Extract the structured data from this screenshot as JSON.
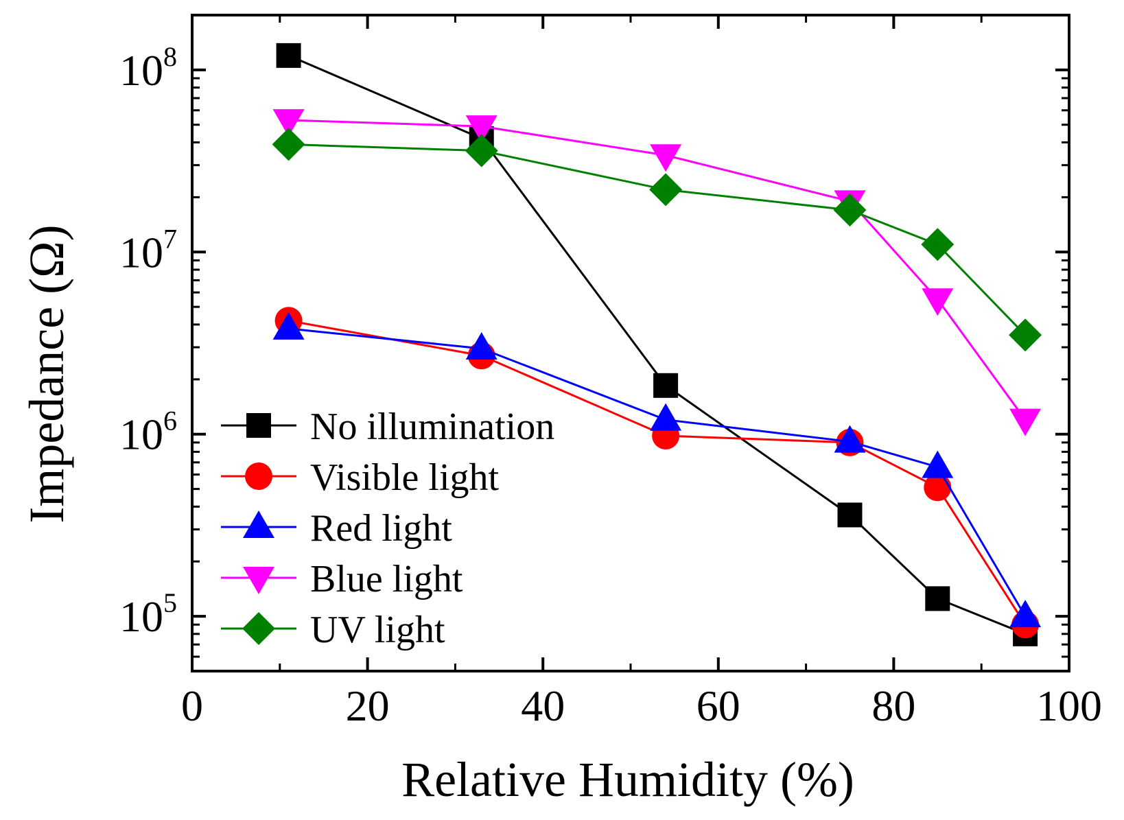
{
  "chart_data": {
    "type": "line",
    "xlabel": "Relative Humidity (%)",
    "ylabel": "Impedance (Ω)",
    "xlim": [
      0,
      100
    ],
    "ylim": [
      50000,
      200000000
    ],
    "yscale": "log",
    "x_ticks": [
      0,
      20,
      40,
      60,
      80,
      100
    ],
    "x_tick_labels": [
      "0",
      "20",
      "40",
      "60",
      "80",
      "100"
    ],
    "y_ticks": [
      100000,
      1000000,
      10000000,
      100000000
    ],
    "y_tick_labels": [
      {
        "base": "10",
        "exp": "5"
      },
      {
        "base": "10",
        "exp": "6"
      },
      {
        "base": "10",
        "exp": "7"
      },
      {
        "base": "10",
        "exp": "8"
      }
    ],
    "grid": false,
    "legend_position": "bottom-left",
    "x": [
      11,
      33,
      54,
      75,
      85,
      95
    ],
    "series": [
      {
        "name": "No illumination",
        "color": "#000000",
        "marker": "square",
        "values": [
          120000000,
          42000000,
          1850000,
          360000,
          125000,
          80000
        ]
      },
      {
        "name": "Visible light",
        "color": "#ff0000",
        "marker": "circle",
        "values": [
          4200000,
          2700000,
          980000,
          900000,
          510000,
          90000
        ]
      },
      {
        "name": "Red light",
        "color": "#0000ff",
        "marker": "triangle-up",
        "values": [
          3800000,
          2950000,
          1200000,
          910000,
          660000,
          100000
        ]
      },
      {
        "name": "Blue light",
        "color": "#ff00ff",
        "marker": "triangle-down",
        "values": [
          53000000,
          49000000,
          34000000,
          19000000,
          5500000,
          1200000
        ]
      },
      {
        "name": "UV light",
        "color": "#008000",
        "marker": "diamond",
        "values": [
          39000000,
          36000000,
          22000000,
          17000000,
          11000000,
          3500000
        ]
      }
    ]
  }
}
